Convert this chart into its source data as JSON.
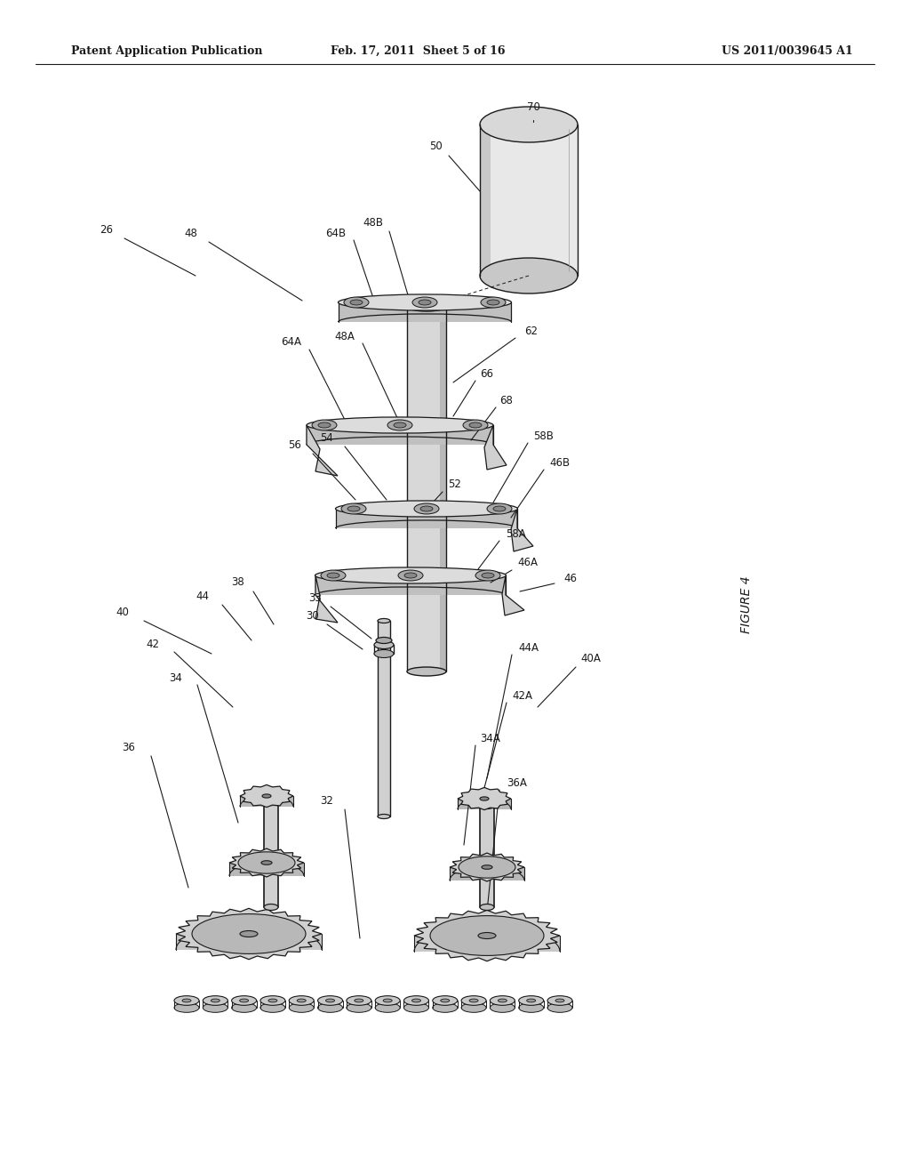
{
  "header_left": "Patent Application Publication",
  "header_mid": "Feb. 17, 2011  Sheet 5 of 16",
  "header_right": "US 2011/0039645 A1",
  "figure_label": "FIGURE 4",
  "bg_color": "#ffffff",
  "line_color": "#1a1a1a",
  "gray_light": "#cccccc",
  "gray_mid": "#aaaaaa",
  "gray_dark": "#888888",
  "white": "#ffffff"
}
